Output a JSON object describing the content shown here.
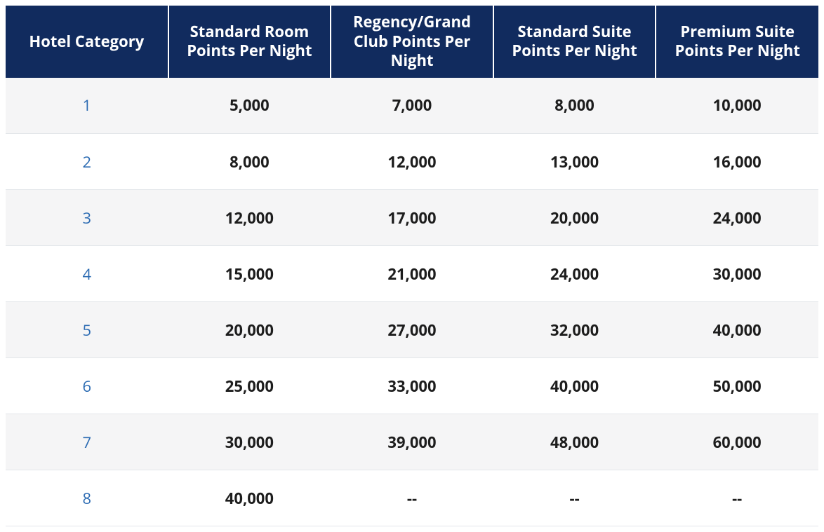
{
  "table": {
    "header_bg": "#112b5e",
    "header_color": "#ffffff",
    "row_odd_bg": "#f5f5f6",
    "row_even_bg": "#ffffff",
    "data_text_color": "#1d1d1d",
    "link_color": "#2d6cb3",
    "header_fontsize": 22,
    "cell_fontsize": 22,
    "columns": [
      "Hotel Category",
      "Standard Room Points Per Night",
      "Regency/Grand Club Points Per Night",
      "Standard Suite Points Per Night",
      "Premium Suite Points Per Night"
    ],
    "rows": [
      {
        "category": "1",
        "standard_room": "5,000",
        "club": "7,000",
        "standard_suite": "8,000",
        "premium_suite": "10,000"
      },
      {
        "category": "2",
        "standard_room": "8,000",
        "club": "12,000",
        "standard_suite": "13,000",
        "premium_suite": "16,000"
      },
      {
        "category": "3",
        "standard_room": "12,000",
        "club": "17,000",
        "standard_suite": "20,000",
        "premium_suite": "24,000"
      },
      {
        "category": "4",
        "standard_room": "15,000",
        "club": "21,000",
        "standard_suite": "24,000",
        "premium_suite": "30,000"
      },
      {
        "category": "5",
        "standard_room": "20,000",
        "club": "27,000",
        "standard_suite": "32,000",
        "premium_suite": "40,000"
      },
      {
        "category": "6",
        "standard_room": "25,000",
        "club": "33,000",
        "standard_suite": "40,000",
        "premium_suite": "50,000"
      },
      {
        "category": "7",
        "standard_room": "30,000",
        "club": "39,000",
        "standard_suite": "48,000",
        "premium_suite": "60,000"
      },
      {
        "category": "8",
        "standard_room": "40,000",
        "club": "--",
        "standard_suite": "--",
        "premium_suite": "--"
      }
    ]
  }
}
